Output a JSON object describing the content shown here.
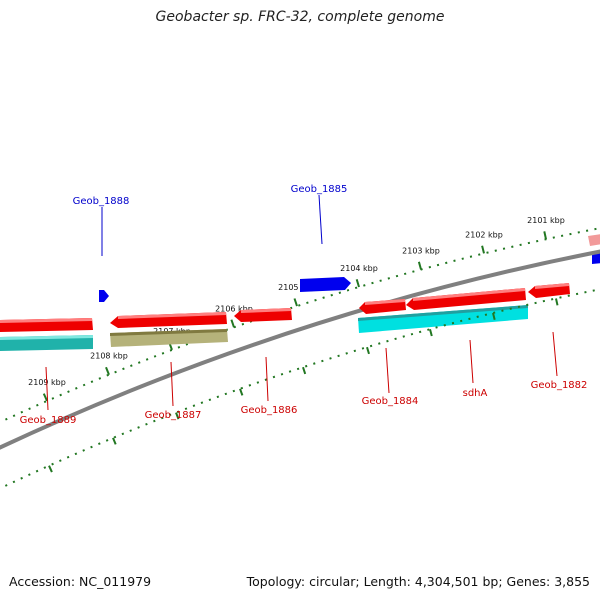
{
  "header": {
    "title": "Geobacter sp. FRC-32, complete genome"
  },
  "footer": {
    "accession": "Accession: NC_011979",
    "topology": "Topology: circular; Length: 4,304,501 bp; Genes: 3,855"
  },
  "scale": {
    "unit": "kbp",
    "ticks": [
      "2109 kbp",
      "2108 kbp",
      "2107 kbp",
      "2106 kbp",
      "2105 kbp",
      "2104 kbp",
      "2103 kbp",
      "2102 kbp",
      "2101 kbp"
    ]
  },
  "genes": {
    "forward_labels": [
      "Geob_1888",
      "Geob_1885"
    ],
    "reverse_labels": [
      "Geob_1889",
      "Geob_1887",
      "Geob_1886",
      "Geob_1884",
      "sdhA",
      "Geob_1882"
    ]
  },
  "colors": {
    "forward_gene": "#0000ee",
    "reverse_gene": "#ee0000",
    "backbone": "#808080",
    "tick": "#227722",
    "cog_cyan": "#00e0e0",
    "cog_olive": "#b5b27a",
    "cog_teal": "#20b2aa"
  }
}
